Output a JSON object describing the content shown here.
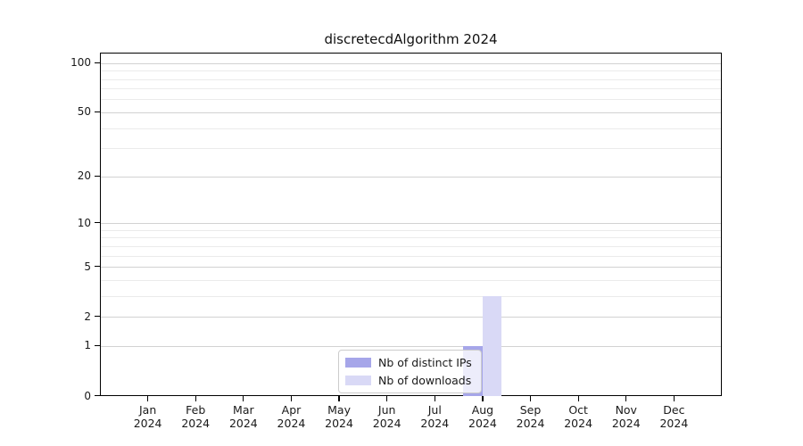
{
  "figure": {
    "title": "discretecdAlgorithm 2024",
    "background": "#ffffff"
  },
  "chart_data": {
    "type": "bar",
    "title": "discretecdAlgorithm 2024",
    "categories": [
      "Jan",
      "Feb",
      "Mar",
      "Apr",
      "May",
      "Jun",
      "Jul",
      "Aug",
      "Sep",
      "Oct",
      "Nov",
      "Dec"
    ],
    "x_year_label": "2024",
    "series": [
      {
        "name": "Nb of distinct IPs",
        "color": "#a6a6e9",
        "values": [
          0,
          0,
          0,
          0,
          0,
          0,
          0,
          1,
          0,
          0,
          0,
          0
        ]
      },
      {
        "name": "Nb of downloads",
        "color": "#d9d9f6",
        "values": [
          0,
          0,
          0,
          0,
          0,
          0,
          0,
          3,
          0,
          0,
          0,
          0
        ]
      }
    ],
    "xlabel": "",
    "ylabel": "",
    "yscale": "log1p",
    "ylim": [
      0,
      115
    ],
    "y_major_ticks": [
      0,
      1,
      2,
      5,
      10,
      20,
      50,
      100
    ],
    "y_minor_gridlines": [
      3,
      4,
      6,
      7,
      8,
      9,
      30,
      40,
      60,
      70,
      80,
      90
    ],
    "grid": "horizontal",
    "legend_position": "bottom-center"
  },
  "legend": {
    "items": [
      {
        "label": "Nb of distinct IPs",
        "color": "#a6a6e9"
      },
      {
        "label": "Nb of downloads",
        "color": "#d9d9f6"
      }
    ]
  },
  "colors": {
    "bar_distinct_ips": "#a6a6e9",
    "bar_downloads": "#d9d9f6",
    "grid_major": "#d2d2d2",
    "grid_minor": "#ebebeb",
    "axis": "#000000",
    "legend_border": "#cccccc",
    "text": "#1a1a1a"
  }
}
